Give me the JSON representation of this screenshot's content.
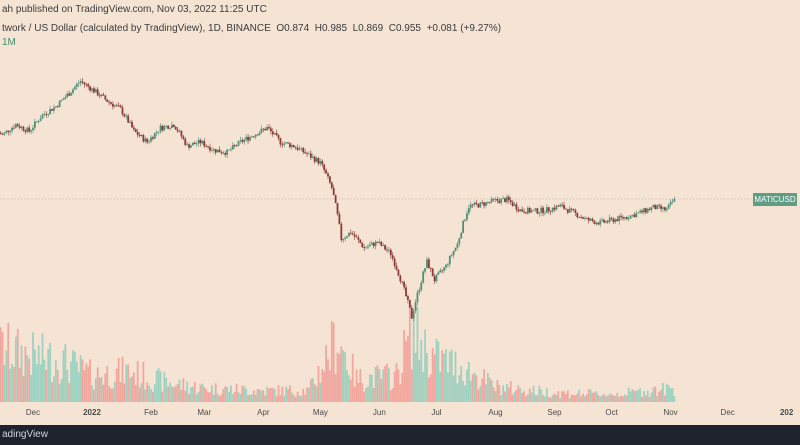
{
  "header": {
    "publish_text": "ah published on TradingView.com, Nov 03, 2022 11:25 UTC",
    "symbol_text": "twork / US Dollar (calculated by TradingView), 1D, BINANCE",
    "ohlc": [
      {
        "k": "O",
        "v": "0.874"
      },
      {
        "k": "H",
        "v": "0.985"
      },
      {
        "k": "L",
        "v": "0.869"
      },
      {
        "k": "C",
        "v": "0.955"
      },
      {
        "k": "",
        "v": "+0.081 (+9.27%)"
      }
    ],
    "volume_text": "1M"
  },
  "footer": {
    "brand": "adingView"
  },
  "price_label": "MATICUSD",
  "colors": {
    "background": "#f5e4d4",
    "up": "#4f8f78",
    "down": "#8a3a34",
    "volume_up": "#9fd1c0",
    "volume_down": "#f2a79e",
    "footer": "#1e222d"
  },
  "chart_data": {
    "type": "candlestick",
    "symbol": "MATICUSD",
    "interval": "1D",
    "exchange": "BINANCE",
    "x_tick_labels": [
      {
        "label": "Dec",
        "date": "2021-12-01"
      },
      {
        "label": "2022",
        "date": "2022-01-01",
        "bold": true
      },
      {
        "label": "Feb",
        "date": "2022-02-01"
      },
      {
        "label": "Mar",
        "date": "2022-03-01"
      },
      {
        "label": "Apr",
        "date": "2022-04-01"
      },
      {
        "label": "May",
        "date": "2022-05-01"
      },
      {
        "label": "Jun",
        "date": "2022-06-01"
      },
      {
        "label": "Jul",
        "date": "2022-07-01"
      },
      {
        "label": "Aug",
        "date": "2022-08-01"
      },
      {
        "label": "Sep",
        "date": "2022-09-01"
      },
      {
        "label": "Oct",
        "date": "2022-10-01"
      },
      {
        "label": "Nov",
        "date": "2022-11-01"
      },
      {
        "label": "Dec",
        "date": "2022-12-01"
      },
      {
        "label": "202",
        "date": "2023-01-01",
        "bold": true
      }
    ],
    "last_close": 0.955,
    "close_path": [
      [
        "2021-11-01",
        1.55
      ],
      [
        "2021-11-08",
        1.75
      ],
      [
        "2021-11-15",
        1.65
      ],
      [
        "2021-11-22",
        1.8
      ],
      [
        "2021-11-29",
        1.7
      ],
      [
        "2021-12-06",
        1.95
      ],
      [
        "2021-12-13",
        2.1
      ],
      [
        "2021-12-20",
        2.35
      ],
      [
        "2021-12-26",
        2.6
      ],
      [
        "2022-01-02",
        2.4
      ],
      [
        "2022-01-09",
        2.2
      ],
      [
        "2022-01-16",
        2.05
      ],
      [
        "2022-01-23",
        1.7
      ],
      [
        "2022-01-30",
        1.55
      ],
      [
        "2022-02-06",
        1.75
      ],
      [
        "2022-02-13",
        1.8
      ],
      [
        "2022-02-20",
        1.5
      ],
      [
        "2022-02-27",
        1.55
      ],
      [
        "2022-03-06",
        1.45
      ],
      [
        "2022-03-13",
        1.42
      ],
      [
        "2022-03-20",
        1.55
      ],
      [
        "2022-03-27",
        1.65
      ],
      [
        "2022-04-03",
        1.75
      ],
      [
        "2022-04-10",
        1.55
      ],
      [
        "2022-04-17",
        1.5
      ],
      [
        "2022-04-24",
        1.4
      ],
      [
        "2022-05-01",
        1.3
      ],
      [
        "2022-05-07",
        1.05
      ],
      [
        "2022-05-12",
        0.68
      ],
      [
        "2022-05-17",
        0.72
      ],
      [
        "2022-05-24",
        0.63
      ],
      [
        "2022-05-31",
        0.66
      ],
      [
        "2022-06-07",
        0.6
      ],
      [
        "2022-06-14",
        0.44
      ],
      [
        "2022-06-18",
        0.35
      ],
      [
        "2022-06-22",
        0.45
      ],
      [
        "2022-06-26",
        0.56
      ],
      [
        "2022-06-30",
        0.48
      ],
      [
        "2022-07-06",
        0.54
      ],
      [
        "2022-07-12",
        0.65
      ],
      [
        "2022-07-18",
        0.9
      ],
      [
        "2022-07-24",
        0.91
      ],
      [
        "2022-07-31",
        0.94
      ],
      [
        "2022-08-07",
        0.95
      ],
      [
        "2022-08-14",
        0.87
      ],
      [
        "2022-08-21",
        0.86
      ],
      [
        "2022-08-28",
        0.87
      ],
      [
        "2022-09-04",
        0.9
      ],
      [
        "2022-09-11",
        0.85
      ],
      [
        "2022-09-18",
        0.8
      ],
      [
        "2022-09-25",
        0.78
      ],
      [
        "2022-10-02",
        0.8
      ],
      [
        "2022-10-09",
        0.82
      ],
      [
        "2022-10-16",
        0.85
      ],
      [
        "2022-10-23",
        0.89
      ],
      [
        "2022-10-30",
        0.87
      ],
      [
        "2022-11-03",
        0.955
      ]
    ],
    "volume_path": [
      [
        "2021-11-01",
        0.55
      ],
      [
        "2021-11-15",
        0.7
      ],
      [
        "2021-12-01",
        0.6
      ],
      [
        "2021-12-15",
        0.55
      ],
      [
        "2022-01-01",
        0.35
      ],
      [
        "2022-01-20",
        0.4
      ],
      [
        "2022-02-10",
        0.25
      ],
      [
        "2022-03-01",
        0.18
      ],
      [
        "2022-04-01",
        0.15
      ],
      [
        "2022-04-25",
        0.15
      ],
      [
        "2022-05-10",
        0.85
      ],
      [
        "2022-05-20",
        0.3
      ],
      [
        "2022-06-10",
        0.35
      ],
      [
        "2022-06-18",
        0.95
      ],
      [
        "2022-06-28",
        0.6
      ],
      [
        "2022-07-15",
        0.45
      ],
      [
        "2022-08-01",
        0.2
      ],
      [
        "2022-09-01",
        0.12
      ],
      [
        "2022-10-01",
        0.1
      ],
      [
        "2022-11-03",
        0.18
      ]
    ],
    "grid": false
  }
}
